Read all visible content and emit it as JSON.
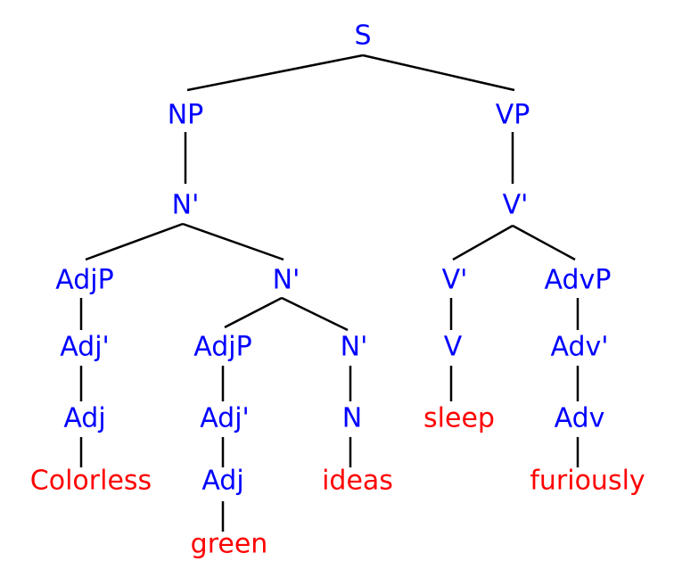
{
  "colors": {
    "category": "#0000ff",
    "word": "#ff0000",
    "edge": "#000000"
  },
  "tree": {
    "S": "S",
    "NP": "NP",
    "VP": "VP",
    "np_nbar": "N'",
    "vp_vbar": "V'",
    "adjp1": "AdjP",
    "nbar2": "N'",
    "vbar2": "V'",
    "advp": "AdvP",
    "adjbar1": "Adj'",
    "adjp2": "AdjP",
    "nbar3": "N'",
    "v": "V",
    "advbar": "Adv'",
    "adj1": "Adj",
    "adjbar2": "Adj'",
    "n": "N",
    "adv": "Adv",
    "adj2": "Adj"
  },
  "words": {
    "colorless": "Colorless",
    "green": "green",
    "ideas": "ideas",
    "sleep": "sleep",
    "furiously": "furiously"
  }
}
